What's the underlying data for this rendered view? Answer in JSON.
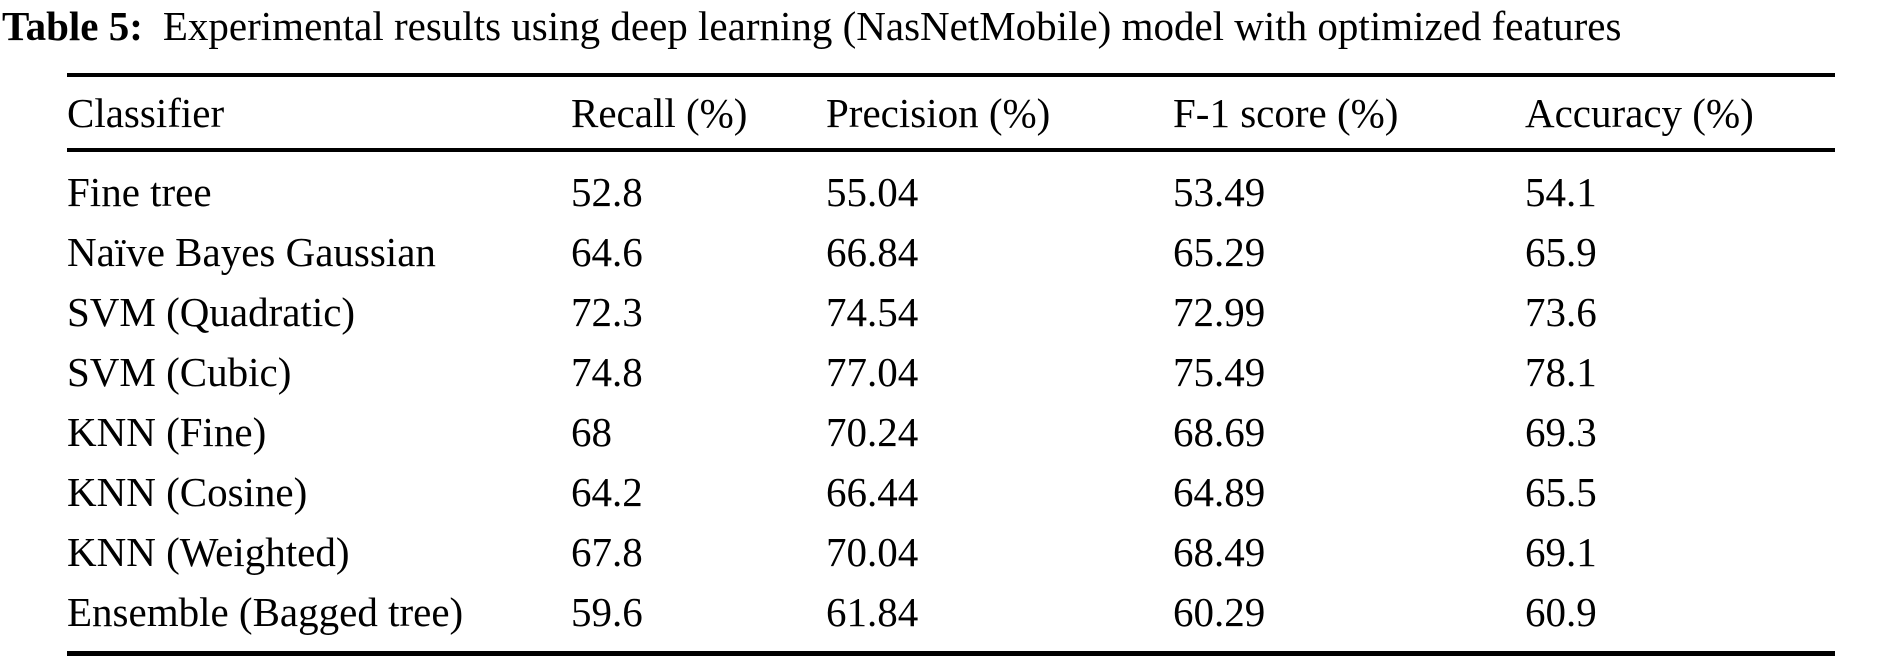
{
  "table": {
    "label": "Table 5:",
    "caption": "Experimental results using deep learning (NasNetMobile) model with optimized features",
    "columns": [
      "Classifier",
      "Recall (%)",
      "Precision (%)",
      "F-1 score (%)",
      "Accuracy (%)"
    ],
    "rows": [
      [
        "Fine tree",
        "52.8",
        "55.04",
        "53.49",
        "54.1"
      ],
      [
        "Naïve Bayes Gaussian",
        "64.6",
        "66.84",
        "65.29",
        "65.9"
      ],
      [
        "SVM (Quadratic)",
        "72.3",
        "74.54",
        "72.99",
        "73.6"
      ],
      [
        "SVM (Cubic)",
        "74.8",
        "77.04",
        "75.49",
        "78.1"
      ],
      [
        "KNN (Fine)",
        "68",
        "70.24",
        "68.69",
        "69.3"
      ],
      [
        "KNN (Cosine)",
        "64.2",
        "66.44",
        "64.89",
        "65.5"
      ],
      [
        "KNN (Weighted)",
        "67.8",
        "70.04",
        "68.49",
        "69.1"
      ],
      [
        "Ensemble (Bagged tree)",
        "59.6",
        "61.84",
        "60.29",
        "60.9"
      ]
    ],
    "colors": {
      "text": "#000000",
      "background": "#ffffff",
      "rule": "#000000"
    }
  }
}
